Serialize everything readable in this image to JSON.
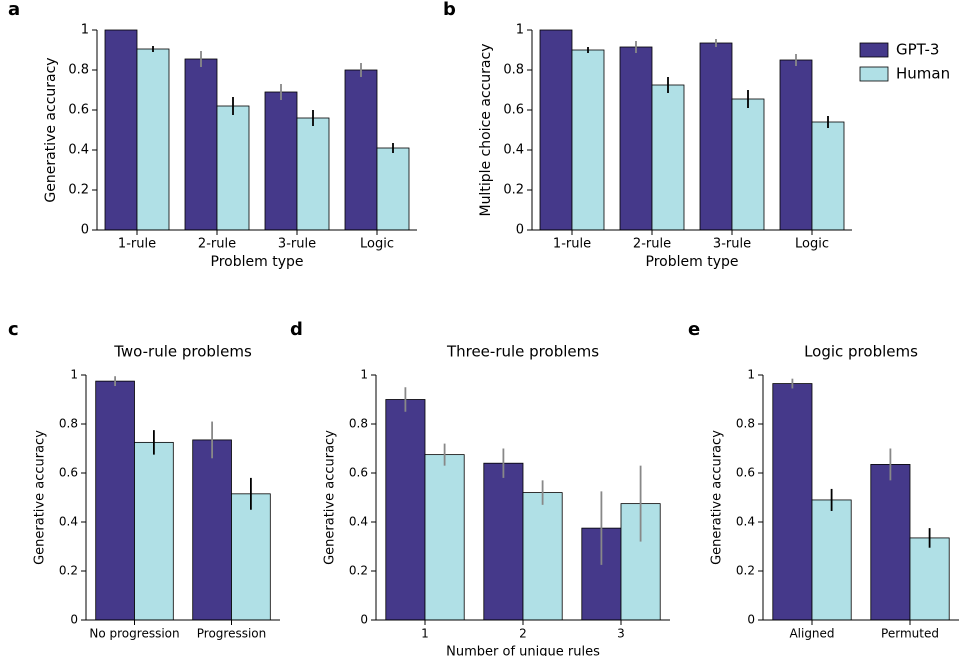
{
  "chart_data": [
    {
      "type": "bar",
      "panel": "a",
      "xlabel": "Problem type",
      "ylabel": "Generative accuracy",
      "categories": [
        "1-rule",
        "2-rule",
        "3-rule",
        "Logic"
      ],
      "series": [
        {
          "color": "#45398a",
          "errcolor": "#888888",
          "values": [
            1.0,
            0.855,
            0.69,
            0.8
          ],
          "errors": [
            0,
            0.04,
            0.04,
            0.035
          ]
        },
        {
          "color": "#b0e0e6",
          "errcolor": "#000000",
          "values": [
            0.905,
            0.62,
            0.56,
            0.41
          ],
          "errors": [
            0.015,
            0.045,
            0.04,
            0.025
          ]
        }
      ],
      "ylim": [
        0,
        1
      ],
      "yticks": [
        0,
        0.2,
        0.4,
        0.6,
        0.8,
        1
      ]
    },
    {
      "type": "bar",
      "panel": "b",
      "xlabel": "Problem type",
      "ylabel": "Multiple choice accuracy",
      "categories": [
        "1-rule",
        "2-rule",
        "3-rule",
        "Logic"
      ],
      "series": [
        {
          "name": "GPT-3",
          "color": "#45398a",
          "errcolor": "#888888",
          "values": [
            1.0,
            0.915,
            0.935,
            0.85
          ],
          "errors": [
            0,
            0.03,
            0.02,
            0.03
          ]
        },
        {
          "name": "Human",
          "color": "#b0e0e6",
          "errcolor": "#000000",
          "values": [
            0.9,
            0.725,
            0.655,
            0.54
          ],
          "errors": [
            0.015,
            0.04,
            0.045,
            0.03
          ]
        }
      ],
      "ylim": [
        0,
        1
      ],
      "yticks": [
        0,
        0.2,
        0.4,
        0.6,
        0.8,
        1
      ],
      "legend": "outside-right"
    },
    {
      "type": "bar",
      "panel": "c",
      "title": "Two-rule problems",
      "ylabel": "Generative accuracy",
      "categories": [
        "No progression",
        "Progression"
      ],
      "series": [
        {
          "color": "#45398a",
          "errcolor": "#888888",
          "values": [
            0.975,
            0.735
          ],
          "errors": [
            0.02,
            0.075
          ]
        },
        {
          "color": "#b0e0e6",
          "errcolor": "#000000",
          "values": [
            0.725,
            0.515
          ],
          "errors": [
            0.05,
            0.065
          ]
        }
      ],
      "ylim": [
        0,
        1
      ],
      "yticks": [
        0,
        0.2,
        0.4,
        0.6,
        0.8,
        1
      ]
    },
    {
      "type": "bar",
      "panel": "d",
      "title": "Three-rule problems",
      "xlabel": "Number of unique rules",
      "ylabel": "Generative accuracy",
      "categories": [
        "1",
        "2",
        "3"
      ],
      "series": [
        {
          "color": "#45398a",
          "errcolor": "#888888",
          "values": [
            0.9,
            0.64,
            0.375
          ],
          "errors": [
            0.05,
            0.06,
            0.15
          ]
        },
        {
          "color": "#b0e0e6",
          "errcolor": "#888888",
          "values": [
            0.675,
            0.52,
            0.475
          ],
          "errors": [
            0.045,
            0.05,
            0.155
          ]
        }
      ],
      "ylim": [
        0,
        1
      ],
      "yticks": [
        0,
        0.2,
        0.4,
        0.6,
        0.8,
        1
      ]
    },
    {
      "type": "bar",
      "panel": "e",
      "title": "Logic problems",
      "ylabel": "Generative accuracy",
      "categories": [
        "Aligned",
        "Permuted"
      ],
      "series": [
        {
          "color": "#45398a",
          "errcolor": "#888888",
          "values": [
            0.965,
            0.635
          ],
          "errors": [
            0.02,
            0.065
          ]
        },
        {
          "color": "#b0e0e6",
          "errcolor": "#000000",
          "values": [
            0.49,
            0.335
          ],
          "errors": [
            0.045,
            0.04
          ]
        }
      ],
      "ylim": [
        0,
        1
      ],
      "yticks": [
        0,
        0.2,
        0.4,
        0.6,
        0.8,
        1
      ]
    }
  ]
}
